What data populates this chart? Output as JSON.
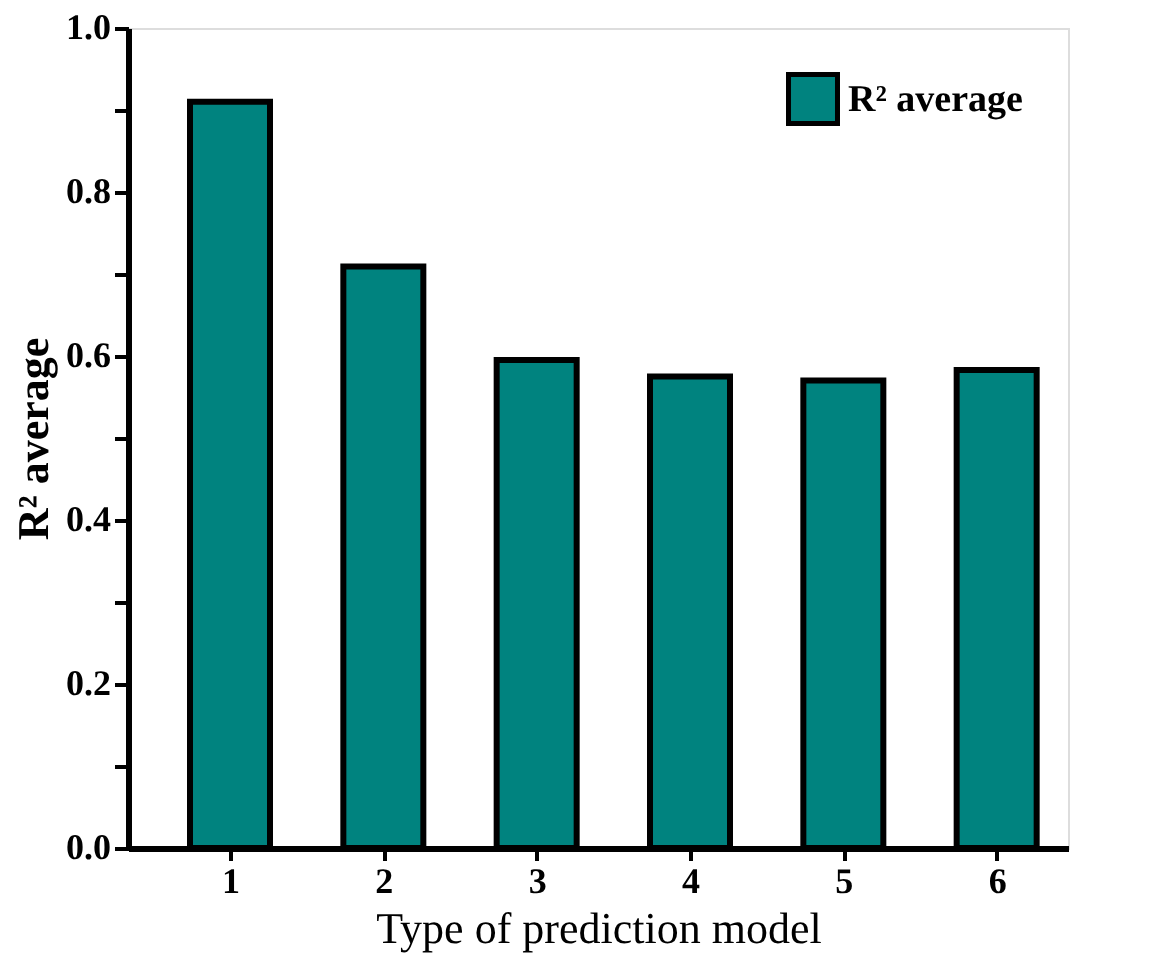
{
  "chart_data": {
    "type": "bar",
    "xlabel": "Type of prediction model",
    "ylabel": "R² average",
    "categories": [
      "1",
      "2",
      "3",
      "4",
      "5",
      "6"
    ],
    "series": [
      {
        "name": "R² average",
        "color": "#00837f",
        "values": [
          0.91,
          0.709,
          0.595,
          0.575,
          0.57,
          0.583
        ]
      }
    ],
    "ylim": [
      0,
      1
    ],
    "yticks": [
      {
        "value": 0,
        "label": "0.0"
      },
      {
        "value": 0.1,
        "label": null
      },
      0.2,
      {
        "value": 0.3,
        "label": null
      },
      0.4,
      {
        "value": 0.5,
        "label": null
      },
      0.6,
      {
        "value": 0.7,
        "label": null
      },
      0.8,
      {
        "value": 0.9,
        "label": null
      },
      {
        "value": 1,
        "label": "1.0"
      }
    ],
    "grid": false,
    "legend": "top right"
  }
}
